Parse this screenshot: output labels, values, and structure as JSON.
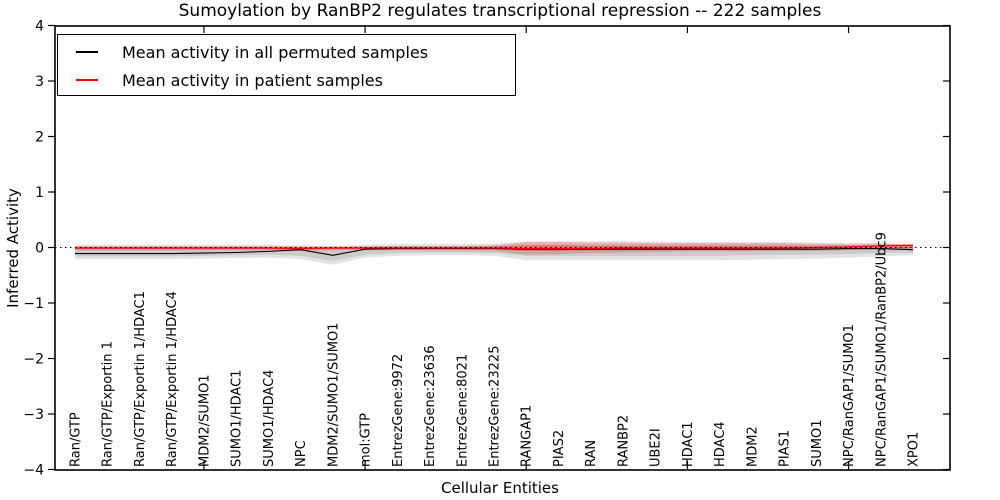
{
  "chart_data": {
    "type": "line",
    "title": "Sumoylation by RanBP2 regulates transcriptional repression -- 222 samples",
    "xlabel": "Cellular Entities",
    "ylabel": "Inferred Activity",
    "ylim": [
      -4,
      4
    ],
    "yticks": [
      4,
      3,
      2,
      1,
      0,
      -1,
      -2,
      -3,
      -4
    ],
    "ytick_labels": [
      "4",
      "3",
      "2",
      "1",
      "0",
      "−1",
      "−2",
      "−3",
      "−4"
    ],
    "xtick_positions": [
      4,
      9,
      14,
      19,
      24
    ],
    "grid": false,
    "legend_position": "upper left",
    "sample_count": "222 samples",
    "categories": [
      "Ran/GTP",
      "Ran/GTP/Exportin 1",
      "Ran/GTP/Exportin 1/HDAC1",
      "Ran/GTP/Exportin 1/HDAC4",
      "MDM2/SUMO1",
      "SUMO1/HDAC1",
      "SUMO1/HDAC4",
      "NPC",
      "MDM2/SUMO1/SUMO1",
      "mol:GTP",
      "EntrezGene:9972",
      "EntrezGene:23636",
      "EntrezGene:8021",
      "EntrezGene:23225",
      "RANGAP1",
      "PIAS2",
      "RAN",
      "RANBP2",
      "UBE2I",
      "HDAC1",
      "HDAC4",
      "MDM2",
      "PIAS1",
      "SUMO1",
      "NPC/RanGAP1/SUMO1",
      "NPC/RanGAP1/SUMO1/RanBP2/Ubc9",
      "XPO1"
    ],
    "zero_line": {
      "y": 0,
      "style": "dotted",
      "color": "#000000"
    },
    "series": [
      {
        "name": "Mean activity in all permuted samples",
        "color": "#000000",
        "values": [
          -0.11,
          -0.11,
          -0.11,
          -0.11,
          -0.1,
          -0.09,
          -0.07,
          -0.04,
          -0.14,
          -0.03,
          -0.02,
          -0.02,
          -0.02,
          -0.02,
          -0.03,
          -0.03,
          -0.03,
          -0.03,
          -0.03,
          -0.03,
          -0.03,
          -0.03,
          -0.03,
          -0.03,
          -0.02,
          -0.02,
          -0.04
        ]
      },
      {
        "name": "Mean activity in patient samples",
        "color": "#ff0000",
        "values": [
          -0.01,
          -0.01,
          -0.01,
          -0.01,
          -0.01,
          -0.01,
          -0.01,
          -0.02,
          -0.01,
          -0.01,
          -0.01,
          -0.01,
          -0.01,
          -0.01,
          -0.02,
          -0.02,
          -0.02,
          -0.01,
          -0.01,
          -0.01,
          -0.01,
          -0.01,
          -0.01,
          0.0,
          0.01,
          0.03,
          0.04
        ]
      }
    ],
    "bands": [
      {
        "name": "permuted-range-outer",
        "color": "#000000",
        "opacity": 0.11,
        "upper": [
          0.05,
          0.05,
          0.05,
          0.05,
          0.05,
          0.05,
          0.05,
          0.04,
          0.03,
          0.05,
          0.06,
          0.06,
          0.06,
          0.07,
          0.11,
          0.11,
          0.11,
          0.11,
          0.11,
          0.1,
          0.1,
          0.1,
          0.1,
          0.09,
          0.08,
          0.08,
          0.06
        ],
        "lower": [
          -0.21,
          -0.21,
          -0.21,
          -0.21,
          -0.2,
          -0.19,
          -0.18,
          -0.21,
          -0.31,
          -0.18,
          -0.15,
          -0.14,
          -0.14,
          -0.15,
          -0.23,
          -0.23,
          -0.23,
          -0.23,
          -0.23,
          -0.23,
          -0.23,
          -0.22,
          -0.21,
          -0.2,
          -0.18,
          -0.16,
          -0.14
        ]
      },
      {
        "name": "permuted-range-inner",
        "color": "#000000",
        "opacity": 0.1,
        "upper": [
          0.02,
          0.02,
          0.02,
          0.02,
          0.02,
          0.02,
          0.02,
          0.01,
          0.0,
          0.02,
          0.03,
          0.03,
          0.03,
          0.03,
          0.05,
          0.05,
          0.05,
          0.05,
          0.05,
          0.05,
          0.05,
          0.05,
          0.05,
          0.04,
          0.04,
          0.04,
          0.03
        ],
        "lower": [
          -0.16,
          -0.16,
          -0.16,
          -0.16,
          -0.15,
          -0.14,
          -0.13,
          -0.15,
          -0.24,
          -0.13,
          -0.1,
          -0.09,
          -0.09,
          -0.1,
          -0.15,
          -0.15,
          -0.15,
          -0.15,
          -0.15,
          -0.15,
          -0.15,
          -0.14,
          -0.13,
          -0.13,
          -0.12,
          -0.1,
          -0.09
        ]
      },
      {
        "name": "patient-range-outer",
        "color": "#ff0000",
        "opacity": 0.22,
        "upper": [
          0.02,
          0.02,
          0.02,
          0.02,
          0.02,
          0.02,
          0.02,
          0.02,
          0.02,
          0.02,
          0.03,
          0.03,
          0.03,
          0.04,
          0.1,
          0.1,
          0.09,
          0.09,
          0.08,
          0.08,
          0.08,
          0.08,
          0.08,
          0.07,
          0.06,
          0.07,
          0.06
        ],
        "lower": [
          -0.05,
          -0.05,
          -0.05,
          -0.05,
          -0.05,
          -0.05,
          -0.05,
          -0.06,
          -0.05,
          -0.04,
          -0.05,
          -0.05,
          -0.05,
          -0.06,
          -0.13,
          -0.12,
          -0.1,
          -0.09,
          -0.08,
          -0.07,
          -0.07,
          -0.07,
          -0.06,
          -0.06,
          -0.05,
          -0.04,
          -0.03
        ]
      },
      {
        "name": "patient-range-inner",
        "color": "#ff0000",
        "opacity": 0.28,
        "upper": [
          0.01,
          0.01,
          0.01,
          0.01,
          0.01,
          0.01,
          0.01,
          0.01,
          0.01,
          0.01,
          0.01,
          0.01,
          0.01,
          0.02,
          0.04,
          0.04,
          0.03,
          0.03,
          0.03,
          0.03,
          0.03,
          0.03,
          0.03,
          0.03,
          0.03,
          0.04,
          0.05
        ],
        "lower": [
          -0.03,
          -0.03,
          -0.03,
          -0.03,
          -0.03,
          -0.03,
          -0.03,
          -0.04,
          -0.03,
          -0.03,
          -0.03,
          -0.03,
          -0.03,
          -0.03,
          -0.06,
          -0.06,
          -0.05,
          -0.05,
          -0.04,
          -0.04,
          -0.04,
          -0.04,
          -0.04,
          -0.04,
          -0.03,
          -0.02,
          -0.01
        ]
      }
    ]
  },
  "legend": {
    "items": [
      {
        "label": "Mean activity in all permuted samples",
        "color": "#000000"
      },
      {
        "label": "Mean activity in patient samples",
        "color": "#ff0000"
      }
    ]
  }
}
